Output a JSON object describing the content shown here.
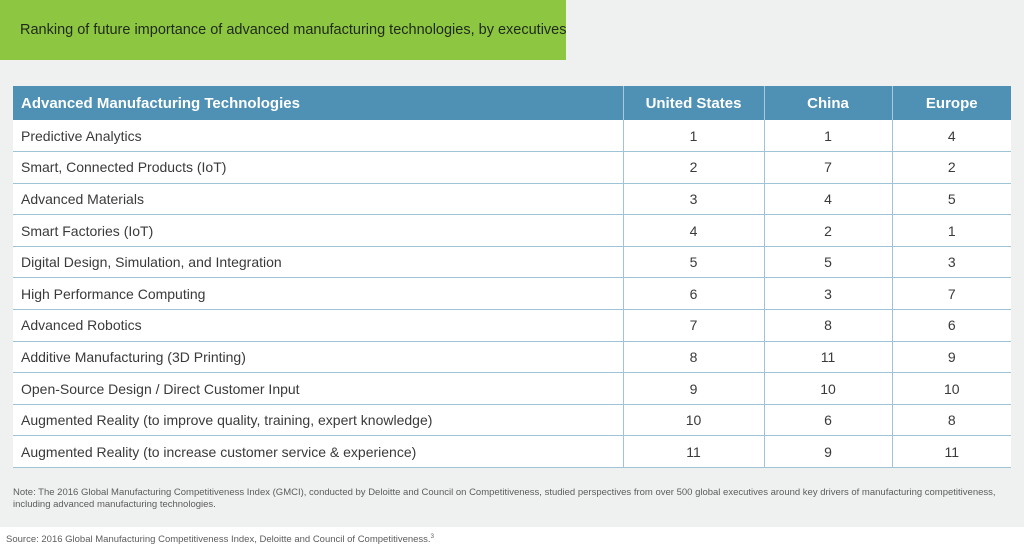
{
  "title": "Ranking of future importance of advanced manufacturing technologies, by executives",
  "colors": {
    "title_bar": "#8dc641",
    "header": "#4f91b5",
    "panel": "#eff0f0",
    "row_border": "#9fc4d8"
  },
  "chart_data": {
    "type": "table",
    "columns": [
      "Advanced Manufacturing Technologies",
      "United States",
      "China",
      "Europe"
    ],
    "rows": [
      [
        "Predictive Analytics",
        "1",
        "1",
        "4"
      ],
      [
        "Smart, Connected Products (IoT)",
        "2",
        "7",
        "2"
      ],
      [
        "Advanced Materials",
        "3",
        "4",
        "5"
      ],
      [
        "Smart Factories (IoT)",
        "4",
        "2",
        "1"
      ],
      [
        "Digital Design, Simulation, and Integration",
        "5",
        "5",
        "3"
      ],
      [
        "High Performance Computing",
        "6",
        "3",
        "7"
      ],
      [
        "Advanced Robotics",
        "7",
        "8",
        "6"
      ],
      [
        "Additive Manufacturing (3D Printing)",
        "8",
        "11",
        "9"
      ],
      [
        "Open-Source Design / Direct Customer Input",
        "9",
        "10",
        "10"
      ],
      [
        "Augmented Reality (to improve quality, training, expert knowledge)",
        "10",
        "6",
        "8"
      ],
      [
        "Augmented Reality (to increase customer service & experience)",
        "11",
        "9",
        "11"
      ]
    ]
  },
  "note": "Note: The 2016 Global Manufacturing Competitiveness Index (GMCI), conducted by Deloitte and Council on Competitiveness, studied perspectives from over 500 global executives around key drivers of manufacturing competitiveness, including advanced manufacturing technologies.",
  "source": {
    "text": "Source: 2016 Global Manufacturing Competitiveness Index, Deloitte and Council of Competitiveness.",
    "footnote": "3"
  }
}
